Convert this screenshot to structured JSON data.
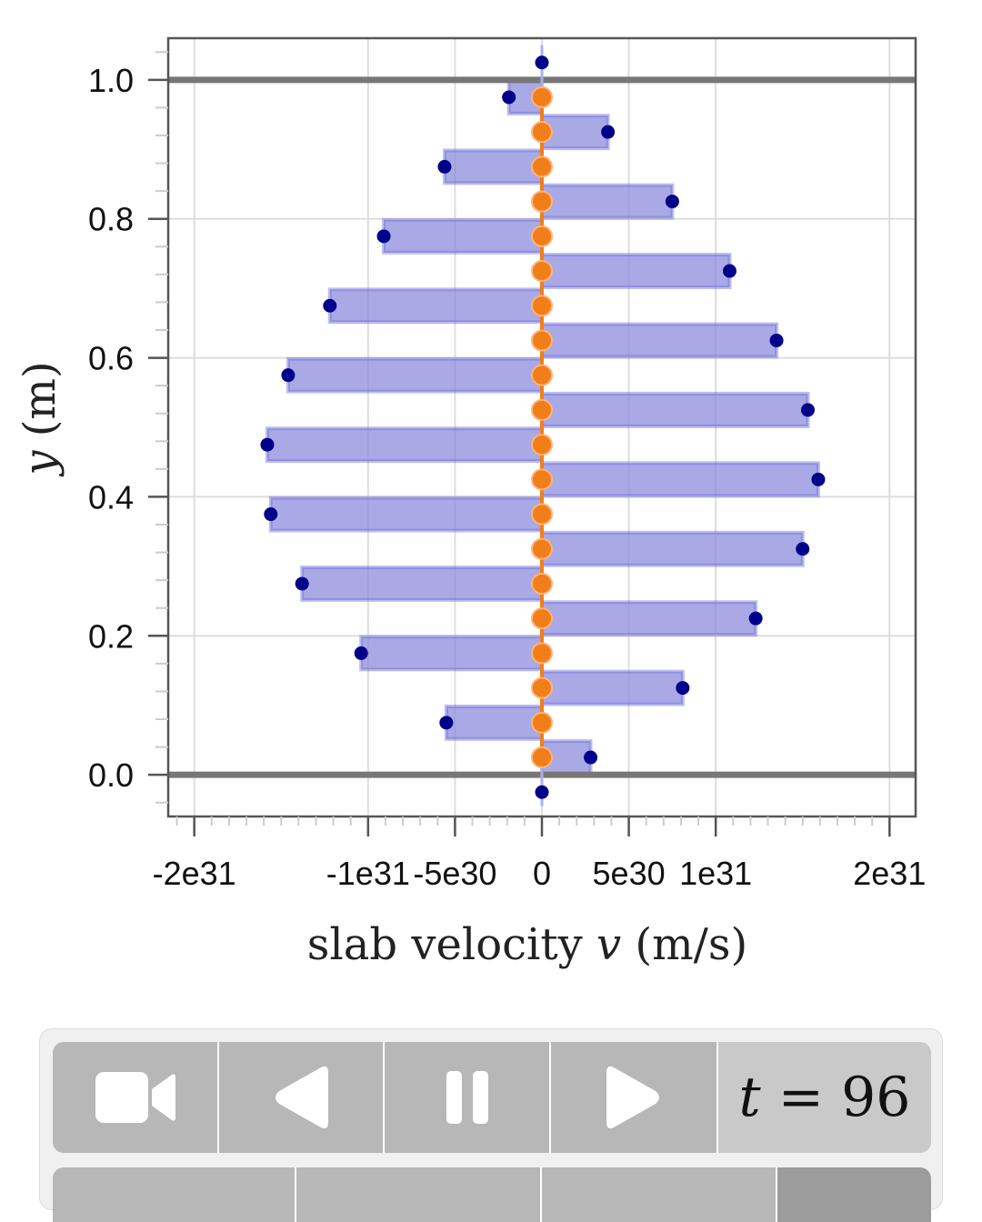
{
  "chart_data": {
    "type": "bar",
    "orientation": "horizontal",
    "xlabel": "slab velocity",
    "xlabel_var": "v",
    "xlabel_unit": "(m/s)",
    "ylabel_var": "y",
    "ylabel_unit": "(m)",
    "xlim": [
      -2.15e+31,
      2.15e+31
    ],
    "ylim": [
      -0.06,
      1.06
    ],
    "xticks": [
      {
        "value": -2e+31,
        "label": "-2e31"
      },
      {
        "value": -1e+31,
        "label": "-1e31"
      },
      {
        "value": -5e+30,
        "label": "-5e30"
      },
      {
        "value": 0,
        "label": "0"
      },
      {
        "value": 5e+30,
        "label": "5e30"
      },
      {
        "value": 1e+31,
        "label": "1e31"
      },
      {
        "value": 2e+31,
        "label": "2e31"
      }
    ],
    "yticks": [
      {
        "value": 0.0,
        "label": "0.0"
      },
      {
        "value": 0.2,
        "label": "0.2"
      },
      {
        "value": 0.4,
        "label": "0.4"
      },
      {
        "value": 0.6,
        "label": "0.6"
      },
      {
        "value": 0.8,
        "label": "0.8"
      },
      {
        "value": 1.0,
        "label": "1.0"
      }
    ],
    "grid": true,
    "boundaries_y": [
      0.0,
      1.0
    ],
    "y": [
      0.025,
      0.075,
      0.125,
      0.175,
      0.225,
      0.275,
      0.325,
      0.375,
      0.425,
      0.475,
      0.525,
      0.575,
      0.625,
      0.675,
      0.725,
      0.775,
      0.825,
      0.875,
      0.925,
      0.975
    ],
    "values": [
      2.8e+30,
      -5.5e+30,
      8.1e+30,
      -1.04e+31,
      1.23e+31,
      -1.38e+31,
      1.5e+31,
      -1.56e+31,
      1.59e+31,
      -1.58e+31,
      1.53e+31,
      -1.46e+31,
      1.35e+31,
      -1.22e+31,
      1.08e+31,
      -9.1e+30,
      7.5e+30,
      -5.6e+30,
      3.8e+30,
      -1.9e+30
    ],
    "ghost_points": [
      {
        "y": -0.025,
        "value": 0
      },
      {
        "y": 1.025,
        "value": 0
      }
    ],
    "bar_color": "#8888dd",
    "point_color": "#00008b",
    "mesh_point_color": "#f07f1a",
    "boundary_color": "#777777"
  },
  "controls": {
    "time_var": "t",
    "time_eq": "= 96"
  }
}
